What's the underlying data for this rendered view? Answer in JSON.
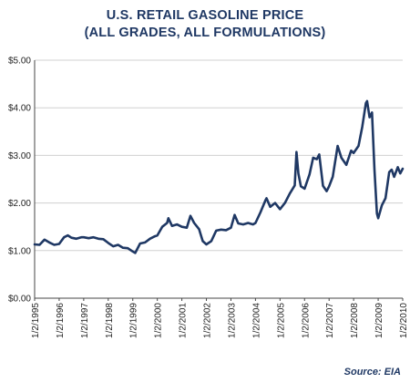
{
  "chart_data": {
    "type": "line",
    "title": "U.S. RETAIL GASOLINE PRICE",
    "subtitle": "(ALL GRADES, ALL FORMULATIONS)",
    "xlabel": "",
    "ylabel": "",
    "source": "Source: EIA",
    "ylim": [
      0,
      5
    ],
    "y_ticks": [
      "$0.00",
      "$1.00",
      "$2.00",
      "$3.00",
      "$4.00",
      "$5.00"
    ],
    "x_ticks": [
      "1/2/1995",
      "1/2/1996",
      "1/2/1997",
      "1/2/1998",
      "1/2/1999",
      "1/2/2000",
      "1/2/2001",
      "1/2/2002",
      "1/2/2003",
      "1/2/2004",
      "1/2/2005",
      "1/2/2006",
      "1/2/2007",
      "1/2/2008",
      "1/2/2009",
      "1/2/2010"
    ],
    "x_range": [
      1995.0,
      2010.0
    ],
    "grid": true,
    "line_color": "#1f3864",
    "series": [
      {
        "x": [
          1995.0,
          1995.2,
          1995.4,
          1995.6,
          1995.8,
          1996.0,
          1996.2,
          1996.35,
          1996.5,
          1996.7,
          1996.9,
          1997.0,
          1997.2,
          1997.4,
          1997.6,
          1997.8,
          1998.0,
          1998.2,
          1998.4,
          1998.6,
          1998.8,
          1999.0,
          1999.1,
          1999.3,
          1999.5,
          1999.7,
          1999.9,
          2000.0,
          2000.2,
          2000.4,
          2000.45,
          2000.6,
          2000.8,
          2001.0,
          2001.2,
          2001.35,
          2001.5,
          2001.7,
          2001.85,
          2002.0,
          2002.2,
          2002.4,
          2002.6,
          2002.8,
          2003.0,
          2003.15,
          2003.3,
          2003.5,
          2003.7,
          2003.9,
          2004.0,
          2004.2,
          2004.4,
          2004.45,
          2004.6,
          2004.8,
          2005.0,
          2005.2,
          2005.4,
          2005.6,
          2005.67,
          2005.75,
          2005.85,
          2006.0,
          2006.2,
          2006.35,
          2006.5,
          2006.6,
          2006.75,
          2006.9,
          2007.0,
          2007.15,
          2007.35,
          2007.5,
          2007.7,
          2007.9,
          2008.0,
          2008.2,
          2008.35,
          2008.5,
          2008.55,
          2008.65,
          2008.75,
          2008.85,
          2008.95,
          2009.0,
          2009.15,
          2009.3,
          2009.45,
          2009.55,
          2009.65,
          2009.8,
          2009.9,
          2010.0
        ],
        "y": [
          1.13,
          1.12,
          1.23,
          1.17,
          1.12,
          1.14,
          1.28,
          1.32,
          1.27,
          1.25,
          1.28,
          1.28,
          1.26,
          1.28,
          1.25,
          1.24,
          1.16,
          1.09,
          1.12,
          1.06,
          1.05,
          0.98,
          0.95,
          1.15,
          1.17,
          1.25,
          1.3,
          1.32,
          1.5,
          1.58,
          1.68,
          1.52,
          1.55,
          1.5,
          1.48,
          1.73,
          1.58,
          1.45,
          1.2,
          1.13,
          1.2,
          1.42,
          1.44,
          1.43,
          1.48,
          1.75,
          1.57,
          1.55,
          1.58,
          1.55,
          1.58,
          1.8,
          2.05,
          2.1,
          1.92,
          2.0,
          1.87,
          2.0,
          2.2,
          2.37,
          3.07,
          2.62,
          2.35,
          2.3,
          2.6,
          2.95,
          2.92,
          3.02,
          2.36,
          2.25,
          2.35,
          2.55,
          3.2,
          2.95,
          2.8,
          3.1,
          3.05,
          3.2,
          3.6,
          4.1,
          4.14,
          3.8,
          3.9,
          2.7,
          1.78,
          1.68,
          1.95,
          2.1,
          2.65,
          2.7,
          2.55,
          2.75,
          2.62,
          2.72
        ]
      }
    ]
  }
}
